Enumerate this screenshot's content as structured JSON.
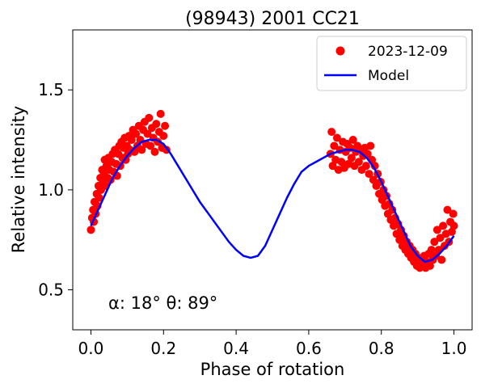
{
  "chart_data": {
    "type": "scatter",
    "title": "(98943) 2001 CC21",
    "xlabel": "Phase of rotation",
    "ylabel": "Relative intensity",
    "xlim": [
      -0.05,
      1.05
    ],
    "ylim": [
      0.3,
      1.8
    ],
    "x_ticks": [
      0.0,
      0.2,
      0.4,
      0.6,
      0.8,
      1.0
    ],
    "x_tick_labels": [
      "0.0",
      "0.2",
      "0.4",
      "0.6",
      "0.8",
      "1.0"
    ],
    "y_ticks": [
      0.5,
      1.0,
      1.5
    ],
    "y_tick_labels": [
      "0.5",
      "1.0",
      "1.5"
    ],
    "grid": false,
    "legend_position": "top-right",
    "annotation": "α: 18° θ: 89°",
    "series": [
      {
        "name": "2023-12-09",
        "kind": "scatter",
        "color": "#ff0000",
        "points": [
          [
            0.0,
            0.8
          ],
          [
            0.003,
            0.86
          ],
          [
            0.006,
            0.9
          ],
          [
            0.008,
            0.84
          ],
          [
            0.01,
            0.94
          ],
          [
            0.013,
            0.88
          ],
          [
            0.016,
            0.98
          ],
          [
            0.018,
            0.92
          ],
          [
            0.021,
            1.02
          ],
          [
            0.023,
            0.96
          ],
          [
            0.026,
            1.06
          ],
          [
            0.028,
            1.0
          ],
          [
            0.031,
            1.1
          ],
          [
            0.033,
            1.04
          ],
          [
            0.036,
            1.08
          ],
          [
            0.038,
            1.15
          ],
          [
            0.041,
            1.02
          ],
          [
            0.043,
            1.12
          ],
          [
            0.046,
            1.06
          ],
          [
            0.048,
            1.16
          ],
          [
            0.051,
            1.1
          ],
          [
            0.054,
            1.05
          ],
          [
            0.057,
            1.14
          ],
          [
            0.06,
            1.18
          ],
          [
            0.063,
            1.09
          ],
          [
            0.066,
            1.2
          ],
          [
            0.069,
            1.13
          ],
          [
            0.072,
            1.07
          ],
          [
            0.075,
            1.18
          ],
          [
            0.078,
            1.22
          ],
          [
            0.081,
            1.12
          ],
          [
            0.084,
            1.24
          ],
          [
            0.087,
            1.16
          ],
          [
            0.09,
            1.21
          ],
          [
            0.093,
            1.26
          ],
          [
            0.096,
            1.15
          ],
          [
            0.099,
            1.22
          ],
          [
            0.102,
            1.18
          ],
          [
            0.105,
            1.27
          ],
          [
            0.108,
            1.2
          ],
          [
            0.112,
            1.25
          ],
          [
            0.116,
            1.3
          ],
          [
            0.12,
            1.19
          ],
          [
            0.124,
            1.28
          ],
          [
            0.128,
            1.22
          ],
          [
            0.132,
            1.32
          ],
          [
            0.136,
            1.25
          ],
          [
            0.14,
            1.2
          ],
          [
            0.144,
            1.3
          ],
          [
            0.148,
            1.34
          ],
          [
            0.152,
            1.23
          ],
          [
            0.156,
            1.28
          ],
          [
            0.16,
            1.36
          ],
          [
            0.164,
            1.22
          ],
          [
            0.168,
            1.31
          ],
          [
            0.172,
            1.26
          ],
          [
            0.176,
            1.19
          ],
          [
            0.18,
            1.33
          ],
          [
            0.184,
            1.24
          ],
          [
            0.188,
            1.29
          ],
          [
            0.192,
            1.38
          ],
          [
            0.196,
            1.21
          ],
          [
            0.2,
            1.27
          ],
          [
            0.204,
            1.32
          ],
          [
            0.208,
            1.2
          ],
          [
            0.66,
            1.18
          ],
          [
            0.663,
            1.29
          ],
          [
            0.666,
            1.12
          ],
          [
            0.67,
            1.22
          ],
          [
            0.674,
            1.15
          ],
          [
            0.678,
            1.26
          ],
          [
            0.682,
            1.1
          ],
          [
            0.686,
            1.2
          ],
          [
            0.69,
            1.14
          ],
          [
            0.694,
            1.24
          ],
          [
            0.698,
            1.11
          ],
          [
            0.702,
            1.19
          ],
          [
            0.706,
            1.23
          ],
          [
            0.71,
            1.13
          ],
          [
            0.714,
            1.21
          ],
          [
            0.718,
            1.16
          ],
          [
            0.722,
            1.25
          ],
          [
            0.726,
            1.12
          ],
          [
            0.73,
            1.19
          ],
          [
            0.734,
            1.22
          ],
          [
            0.738,
            1.14
          ],
          [
            0.742,
            1.2
          ],
          [
            0.746,
            1.1
          ],
          [
            0.75,
            1.17
          ],
          [
            0.754,
            1.21
          ],
          [
            0.758,
            1.12
          ],
          [
            0.762,
            1.18
          ],
          [
            0.766,
            1.08
          ],
          [
            0.77,
            1.22
          ],
          [
            0.774,
            1.15
          ],
          [
            0.778,
            1.05
          ],
          [
            0.782,
            1.12
          ],
          [
            0.786,
            1.02
          ],
          [
            0.79,
            1.08
          ],
          [
            0.794,
            0.98
          ],
          [
            0.798,
            1.04
          ],
          [
            0.802,
            0.95
          ],
          [
            0.806,
            1.0
          ],
          [
            0.81,
            0.92
          ],
          [
            0.814,
            0.97
          ],
          [
            0.818,
            0.88
          ],
          [
            0.822,
            0.93
          ],
          [
            0.826,
            0.85
          ],
          [
            0.83,
            0.9
          ],
          [
            0.834,
            0.82
          ],
          [
            0.838,
            0.86
          ],
          [
            0.842,
            0.78
          ],
          [
            0.846,
            0.83
          ],
          [
            0.85,
            0.75
          ],
          [
            0.854,
            0.8
          ],
          [
            0.858,
            0.72
          ],
          [
            0.862,
            0.77
          ],
          [
            0.866,
            0.7
          ],
          [
            0.87,
            0.74
          ],
          [
            0.874,
            0.68
          ],
          [
            0.878,
            0.72
          ],
          [
            0.882,
            0.66
          ],
          [
            0.886,
            0.7
          ],
          [
            0.89,
            0.64
          ],
          [
            0.894,
            0.68
          ],
          [
            0.898,
            0.62
          ],
          [
            0.902,
            0.66
          ],
          [
            0.906,
            0.61
          ],
          [
            0.91,
            0.65
          ],
          [
            0.914,
            0.62
          ],
          [
            0.918,
            0.67
          ],
          [
            0.922,
            0.61
          ],
          [
            0.926,
            0.64
          ],
          [
            0.93,
            0.68
          ],
          [
            0.934,
            0.62
          ],
          [
            0.938,
            0.7
          ],
          [
            0.942,
            0.65
          ],
          [
            0.946,
            0.74
          ],
          [
            0.95,
            0.67
          ],
          [
            0.954,
            0.8
          ],
          [
            0.958,
            0.7
          ],
          [
            0.962,
            0.76
          ],
          [
            0.966,
            0.65
          ],
          [
            0.97,
            0.82
          ],
          [
            0.974,
            0.72
          ],
          [
            0.978,
            0.78
          ],
          [
            0.982,
            0.9
          ],
          [
            0.986,
            0.74
          ],
          [
            0.99,
            0.84
          ],
          [
            0.994,
            0.79
          ],
          [
            0.998,
            0.88
          ],
          [
            1.0,
            0.82
          ]
        ]
      },
      {
        "name": "Model",
        "kind": "line",
        "color": "#0000ff",
        "points": [
          [
            0.0,
            0.82
          ],
          [
            0.02,
            0.9
          ],
          [
            0.04,
            0.98
          ],
          [
            0.06,
            1.06
          ],
          [
            0.08,
            1.12
          ],
          [
            0.1,
            1.17
          ],
          [
            0.12,
            1.21
          ],
          [
            0.14,
            1.24
          ],
          [
            0.16,
            1.25
          ],
          [
            0.18,
            1.25
          ],
          [
            0.2,
            1.23
          ],
          [
            0.22,
            1.18
          ],
          [
            0.24,
            1.12
          ],
          [
            0.26,
            1.06
          ],
          [
            0.28,
            1.0
          ],
          [
            0.3,
            0.94
          ],
          [
            0.32,
            0.89
          ],
          [
            0.34,
            0.84
          ],
          [
            0.36,
            0.79
          ],
          [
            0.38,
            0.74
          ],
          [
            0.4,
            0.7
          ],
          [
            0.42,
            0.67
          ],
          [
            0.44,
            0.66
          ],
          [
            0.46,
            0.67
          ],
          [
            0.48,
            0.72
          ],
          [
            0.5,
            0.8
          ],
          [
            0.52,
            0.88
          ],
          [
            0.54,
            0.96
          ],
          [
            0.56,
            1.03
          ],
          [
            0.58,
            1.09
          ],
          [
            0.6,
            1.12
          ],
          [
            0.62,
            1.14
          ],
          [
            0.64,
            1.16
          ],
          [
            0.66,
            1.18
          ],
          [
            0.68,
            1.19
          ],
          [
            0.7,
            1.2
          ],
          [
            0.72,
            1.2
          ],
          [
            0.74,
            1.19
          ],
          [
            0.76,
            1.16
          ],
          [
            0.78,
            1.11
          ],
          [
            0.8,
            1.04
          ],
          [
            0.82,
            0.96
          ],
          [
            0.84,
            0.88
          ],
          [
            0.86,
            0.8
          ],
          [
            0.88,
            0.72
          ],
          [
            0.9,
            0.67
          ],
          [
            0.92,
            0.64
          ],
          [
            0.94,
            0.65
          ],
          [
            0.96,
            0.68
          ],
          [
            0.98,
            0.72
          ],
          [
            1.0,
            0.77
          ]
        ]
      }
    ]
  }
}
